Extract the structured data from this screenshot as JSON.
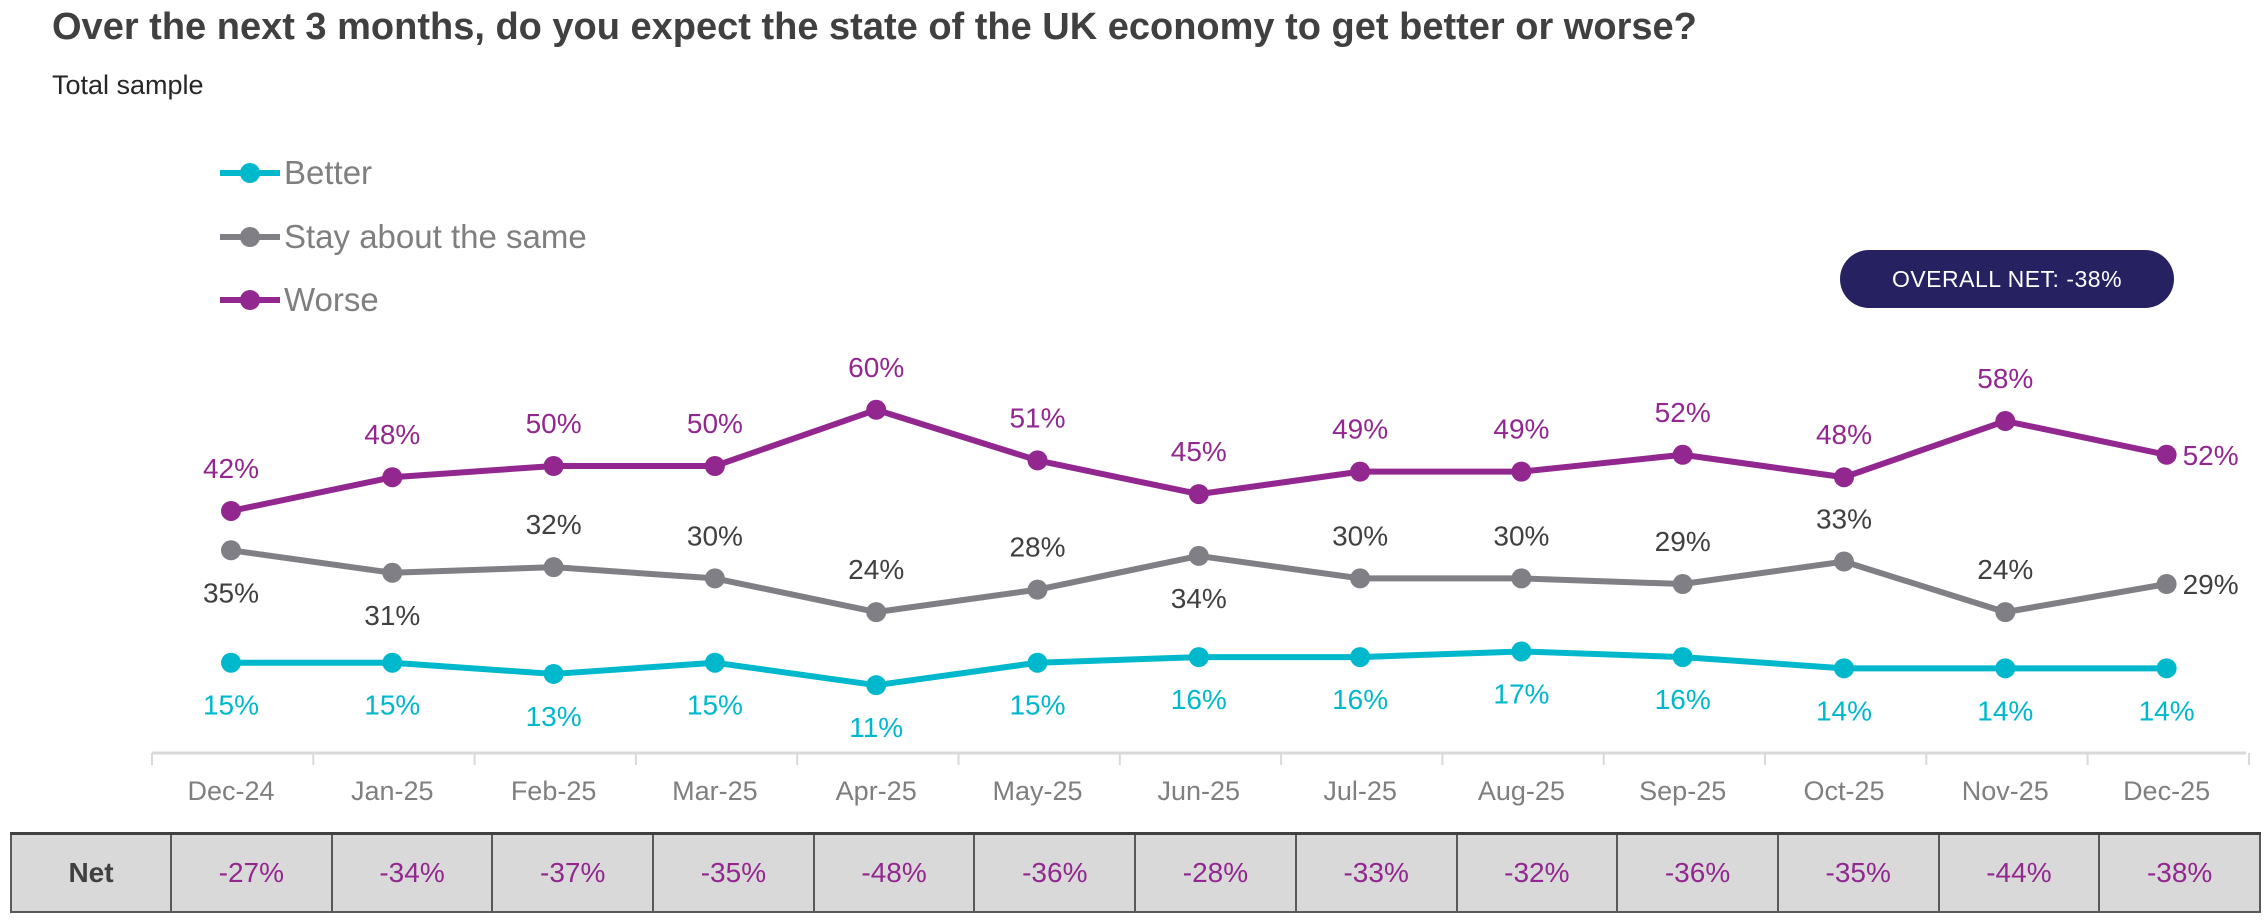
{
  "title": "Over the next 3 months, do you expect the state of the UK economy to get better or worse?",
  "subtitle": "Total sample",
  "overall_net": {
    "label": "OVERALL NET: -38%",
    "color": "#262262"
  },
  "chart_data": {
    "type": "line",
    "categories": [
      "Dec-24",
      "Jan-25",
      "Feb-25",
      "Mar-25",
      "Apr-25",
      "May-25",
      "Jun-25",
      "Jul-25",
      "Aug-25",
      "Sep-25",
      "Oct-25",
      "Nov-25",
      "Dec-25"
    ],
    "series": [
      {
        "name": "Better",
        "color": "#00b8cc",
        "values": [
          15,
          15,
          13,
          15,
          11,
          15,
          16,
          16,
          17,
          16,
          14,
          14,
          14
        ]
      },
      {
        "name": "Stay about the same",
        "color": "#7f7f85",
        "values": [
          35,
          31,
          32,
          30,
          24,
          28,
          34,
          30,
          30,
          29,
          33,
          24,
          29
        ]
      },
      {
        "name": "Worse",
        "color": "#92278f",
        "values": [
          42,
          48,
          50,
          50,
          60,
          51,
          45,
          49,
          49,
          52,
          48,
          58,
          52
        ]
      }
    ],
    "value_suffix": "%",
    "legend_position": "top-left",
    "grid": false
  },
  "net_table": {
    "label": "Net",
    "values": [
      "-27%",
      "-34%",
      "-37%",
      "-35%",
      "-48%",
      "-36%",
      "-28%",
      "-33%",
      "-32%",
      "-36%",
      "-35%",
      "-44%",
      "-38%"
    ],
    "value_color": "#92278f"
  }
}
